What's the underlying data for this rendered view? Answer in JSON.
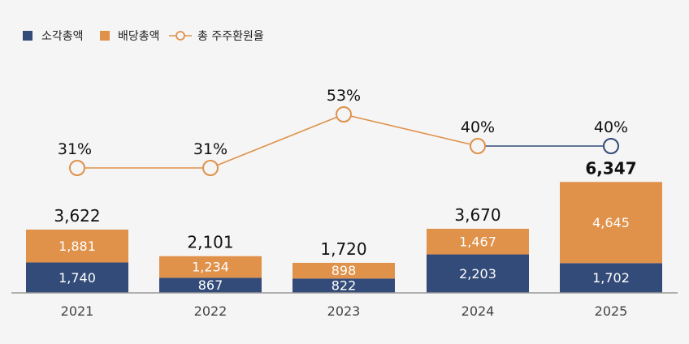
{
  "legend": {
    "buyback": "소각총액",
    "dividend": "배당총액",
    "ratio": "총 주주환원율"
  },
  "colors": {
    "buyback": "#334b78",
    "dividend": "#e0914a",
    "ratio_line": "#e0914a",
    "ratio_line_last": "#334b78",
    "axis": "#999999"
  },
  "chart_data": {
    "type": "bar",
    "stacked": true,
    "categories": [
      "2021",
      "2022",
      "2023",
      "2024",
      "2025"
    ],
    "series": [
      {
        "name": "소각총액",
        "values": [
          1740,
          867,
          822,
          2203,
          1702
        ],
        "labels": [
          "1,740",
          "867",
          "822",
          "2,203",
          "1,702"
        ]
      },
      {
        "name": "배당총액",
        "values": [
          1881,
          1234,
          898,
          1467,
          4645
        ],
        "labels": [
          "1,881",
          "1,234",
          "898",
          "1,467",
          "4,645"
        ]
      }
    ],
    "totals": [
      3622,
      2101,
      1720,
      3670,
      6347
    ],
    "total_labels": [
      "3,622",
      "2,101",
      "1,720",
      "3,670",
      "6,347"
    ],
    "ratio": {
      "name": "총 주주환원율",
      "values": [
        31,
        31,
        53,
        40,
        40
      ],
      "labels": [
        "31%",
        "31%",
        "53%",
        "40%",
        "40%"
      ]
    },
    "ylim": [
      0,
      6500
    ],
    "ratio_ylim": [
      0,
      100
    ],
    "legend_position": "top-left",
    "grid": false
  }
}
